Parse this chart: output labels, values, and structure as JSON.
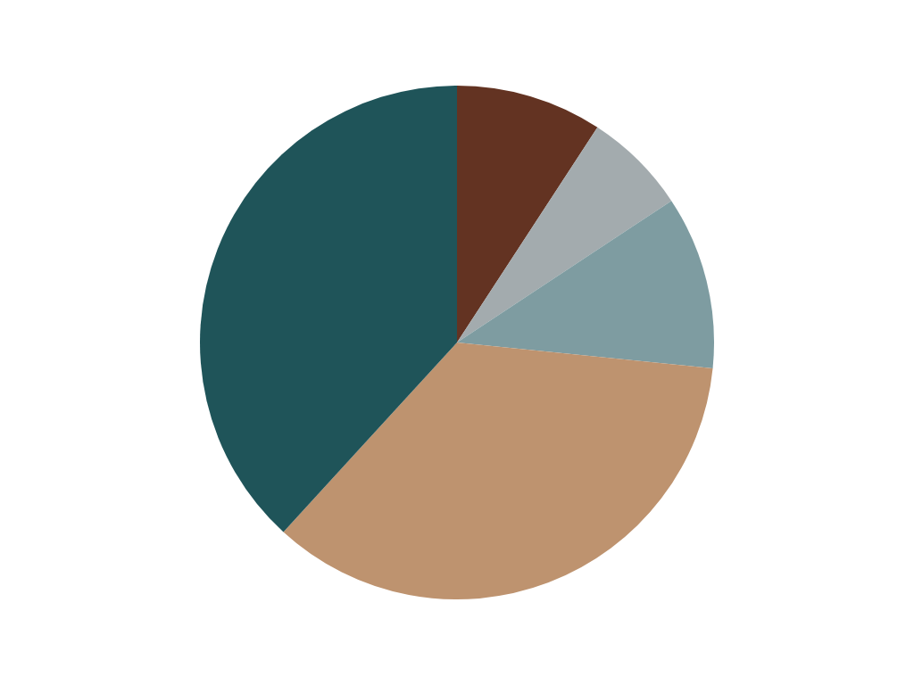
{
  "chart_data": {
    "type": "pie",
    "categories": [
      null,
      null,
      null,
      null,
      null
    ],
    "values": [
      9.2,
      6.5,
      10.9,
      35.2,
      38.2
    ],
    "colors": [
      "#633322",
      "#a3abae",
      "#7e9ca1",
      "#be936f",
      "#1f5459"
    ]
  }
}
